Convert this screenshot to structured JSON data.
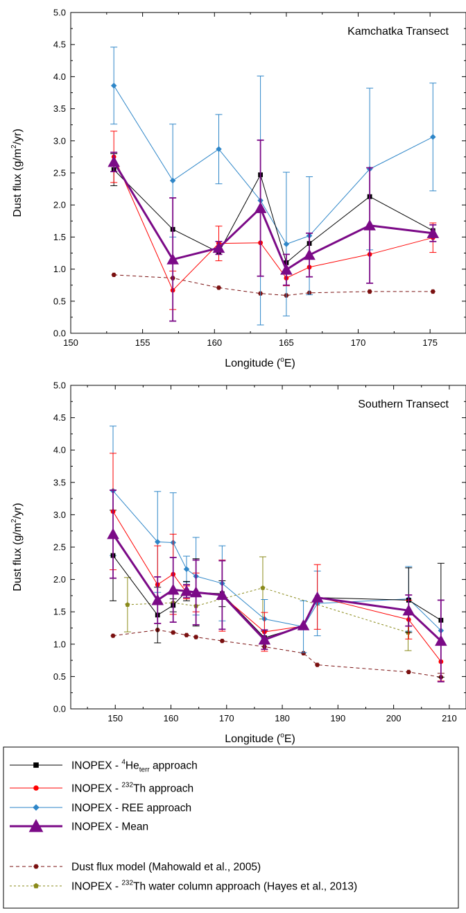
{
  "chart_data": [
    {
      "type": "line",
      "title": "Kamchatka Transect",
      "xlabel": "Longitude (°E)",
      "ylabel": "Dust flux (g/m²/yr)",
      "xlim": [
        150,
        177.5
      ],
      "ylim": [
        0,
        5
      ],
      "xticks": [
        "150",
        "155",
        "160",
        "165",
        "170",
        "175"
      ],
      "yticks": [
        "0.0",
        "0.5",
        "1.0",
        "1.5",
        "2.0",
        "2.5",
        "3.0",
        "3.5",
        "4.0",
        "4.5",
        "5.0"
      ],
      "series": [
        {
          "key": "he",
          "name": "INOPEX - ⁴Heterr approach",
          "color": "#000000",
          "marker": "square",
          "x": [
            153,
            157.1,
            160.3,
            163.2,
            165,
            166.6,
            170.8,
            175.2
          ],
          "y": [
            2.55,
            1.62,
            1.26,
            2.47,
            1.1,
            1.4,
            2.13,
            1.6
          ],
          "err": [
            0.25,
            0.0,
            0.0,
            0.0,
            0.0,
            0.0,
            0.0,
            0.0
          ]
        },
        {
          "key": "th",
          "name": "INOPEX - 232Th approach",
          "color": "#ff0000",
          "marker": "circle",
          "x": [
            153,
            157.1,
            160.3,
            163.2,
            165,
            166.6,
            170.8,
            175.2
          ],
          "y": [
            2.75,
            0.67,
            1.4,
            1.41,
            0.86,
            1.03,
            1.23,
            1.49
          ],
          "err": [
            0.4,
            0.3,
            0.27,
            0.0,
            0.12,
            0.15,
            0.0,
            0.23
          ]
        },
        {
          "key": "ree",
          "name": "INOPEX - REE approach",
          "color": "#2e86c8",
          "marker": "diamond",
          "x": [
            153,
            157.1,
            160.3,
            163.2,
            165,
            166.6,
            170.8,
            175.2
          ],
          "y": [
            3.86,
            2.38,
            2.87,
            2.07,
            1.39,
            1.52,
            2.56,
            3.06
          ],
          "err": [
            0.6,
            0.88,
            0.54,
            1.94,
            1.12,
            0.92,
            1.26,
            0.84
          ]
        },
        {
          "key": "mean",
          "name": "INOPEX - Mean",
          "color": "#7b0a87",
          "marker": "triangle",
          "x": [
            153,
            157.1,
            160.3,
            163.2,
            165,
            166.6,
            170.8,
            175.2
          ],
          "y": [
            2.67,
            1.15,
            1.33,
            1.95,
            0.99,
            1.22,
            1.68,
            1.56
          ],
          "err": [
            0.15,
            0.96,
            0.1,
            1.06,
            0.24,
            0.34,
            0.9,
            0.13
          ]
        },
        {
          "key": "model",
          "name": "Dust flux model (Mahowald et al., 2005)",
          "color": "#7a1010",
          "marker": "hexagon",
          "dashed": true,
          "x": [
            153,
            157.1,
            160.3,
            163.2,
            165,
            166.6,
            170.8,
            175.2
          ],
          "y": [
            0.91,
            0.86,
            0.71,
            0.62,
            0.59,
            0.63,
            0.65,
            0.65
          ],
          "err": [
            0,
            0,
            0,
            0,
            0,
            0,
            0,
            0
          ]
        }
      ]
    },
    {
      "type": "line",
      "title": "Southern Transect",
      "xlabel": "Longitude (°E)",
      "ylabel": "Dust flux (g/m²/yr)",
      "xlim": [
        142,
        213
      ],
      "ylim": [
        0,
        5
      ],
      "xticks": [
        "150",
        "160",
        "170",
        "180",
        "190",
        "200",
        "210"
      ],
      "yticks": [
        "0.0",
        "0.5",
        "1.0",
        "1.5",
        "2.0",
        "2.5",
        "3.0",
        "3.5",
        "4.0",
        "4.5",
        "5.0"
      ],
      "series": [
        {
          "key": "he",
          "name": "INOPEX - ⁴Heterr approach",
          "color": "#000000",
          "marker": "square",
          "x": [
            149.6,
            157.6,
            160.4,
            162.8,
            164.5,
            169.2,
            176.8,
            183.8,
            186.3,
            202.7,
            208.5
          ],
          "y": [
            2.37,
            1.45,
            1.6,
            1.82,
            1.8,
            1.78,
            1.1,
            1.28,
            1.72,
            1.68,
            1.37
          ],
          "err": [
            0.7,
            0.43,
            0.1,
            0.15,
            0.52,
            0.2,
            0.1,
            0.0,
            0.0,
            0.5,
            0.88
          ]
        },
        {
          "key": "th",
          "name": "INOPEX - 232Th approach",
          "color": "#ff0000",
          "marker": "circle",
          "x": [
            149.6,
            157.6,
            160.4,
            162.8,
            164.5,
            169.2,
            176.8,
            183.8,
            186.3,
            202.7,
            208.5
          ],
          "y": [
            3.05,
            1.92,
            2.08,
            1.8,
            1.8,
            1.75,
            1.19,
            1.28,
            1.73,
            1.38,
            0.73
          ],
          "err": [
            0.9,
            0.6,
            0.62,
            0.1,
            0.3,
            0.55,
            0.3,
            0.0,
            0.5,
            0.3,
            0.3
          ]
        },
        {
          "key": "ree",
          "name": "INOPEX - REE approach",
          "color": "#2e86c8",
          "marker": "diamond",
          "x": [
            149.6,
            157.6,
            160.4,
            162.8,
            164.5,
            169.2,
            176.8,
            183.8,
            186.3,
            202.7,
            208.5
          ],
          "y": [
            3.37,
            2.58,
            2.57,
            2.16,
            2.05,
            1.94,
            1.39,
            1.27,
            1.63,
            1.7,
            1.21
          ],
          "err": [
            1.0,
            0.78,
            0.77,
            0.2,
            0.6,
            0.58,
            0.3,
            0.4,
            0.5,
            0.5,
            0.0
          ]
        },
        {
          "key": "mean",
          "name": "INOPEX - Mean",
          "color": "#7b0a87",
          "marker": "triangle",
          "x": [
            149.6,
            157.6,
            160.4,
            162.8,
            164.5,
            169.2,
            176.8,
            183.8,
            186.3,
            202.7,
            208.5
          ],
          "y": [
            2.7,
            1.68,
            1.84,
            1.82,
            1.8,
            1.76,
            1.07,
            1.29,
            1.72,
            1.52,
            1.05
          ],
          "err": [
            0.68,
            0.36,
            0.5,
            0.1,
            0.5,
            0.53,
            0.15,
            0.0,
            0.0,
            0.24,
            0.63
          ]
        },
        {
          "key": "model",
          "name": "Dust flux model (Mahowald et al., 2005)",
          "color": "#7a1010",
          "marker": "hexagon",
          "dashed": true,
          "x": [
            149.6,
            157.6,
            160.4,
            162.8,
            164.5,
            169.2,
            176.8,
            183.8,
            186.3,
            202.7,
            208.5
          ],
          "y": [
            1.13,
            1.22,
            1.18,
            1.14,
            1.11,
            1.05,
            0.96,
            0.86,
            0.68,
            0.57,
            0.49
          ],
          "err": [
            0,
            0,
            0,
            0,
            0,
            0,
            0,
            0,
            0,
            0,
            0.06
          ]
        },
        {
          "key": "water",
          "name": "INOPEX - 232Th water column approach (Hayes et al., 2013)",
          "color": "#8a8a1a",
          "marker": "pentagon",
          "dashed": true,
          "x": [
            152.2,
            160.4,
            164.5,
            176.5,
            202.6
          ],
          "y": [
            1.61,
            1.64,
            1.59,
            1.87,
            1.18
          ],
          "err": [
            0.42,
            0.0,
            0.0,
            0.48,
            0.28
          ]
        }
      ]
    }
  ],
  "legend": [
    {
      "key": "he",
      "prefix": "INOPEX - ",
      "sup": "4",
      "main": "He",
      "sub": "terr",
      "suffix": " approach"
    },
    {
      "key": "th",
      "prefix": "INOPEX - ",
      "sup": "232",
      "main": "Th approach",
      "sub": "",
      "suffix": ""
    },
    {
      "key": "ree",
      "prefix": "INOPEX - REE approach",
      "sup": "",
      "main": "",
      "sub": "",
      "suffix": ""
    },
    {
      "key": "mean",
      "prefix": "INOPEX - Mean",
      "sup": "",
      "main": "",
      "sub": "",
      "suffix": ""
    },
    {
      "key": "model",
      "prefix": "Dust flux model (Mahowald et al., 2005)",
      "sup": "",
      "main": "",
      "sub": "",
      "suffix": ""
    },
    {
      "key": "water",
      "prefix": "INOPEX - ",
      "sup": "232",
      "main": "Th water column approach (Hayes et al., 2013)",
      "sub": "",
      "suffix": ""
    }
  ],
  "colors": {
    "he": "#000000",
    "th": "#ff0000",
    "ree": "#2e86c8",
    "mean": "#7b0a87",
    "model": "#7a1010",
    "water": "#8a8a1a"
  }
}
